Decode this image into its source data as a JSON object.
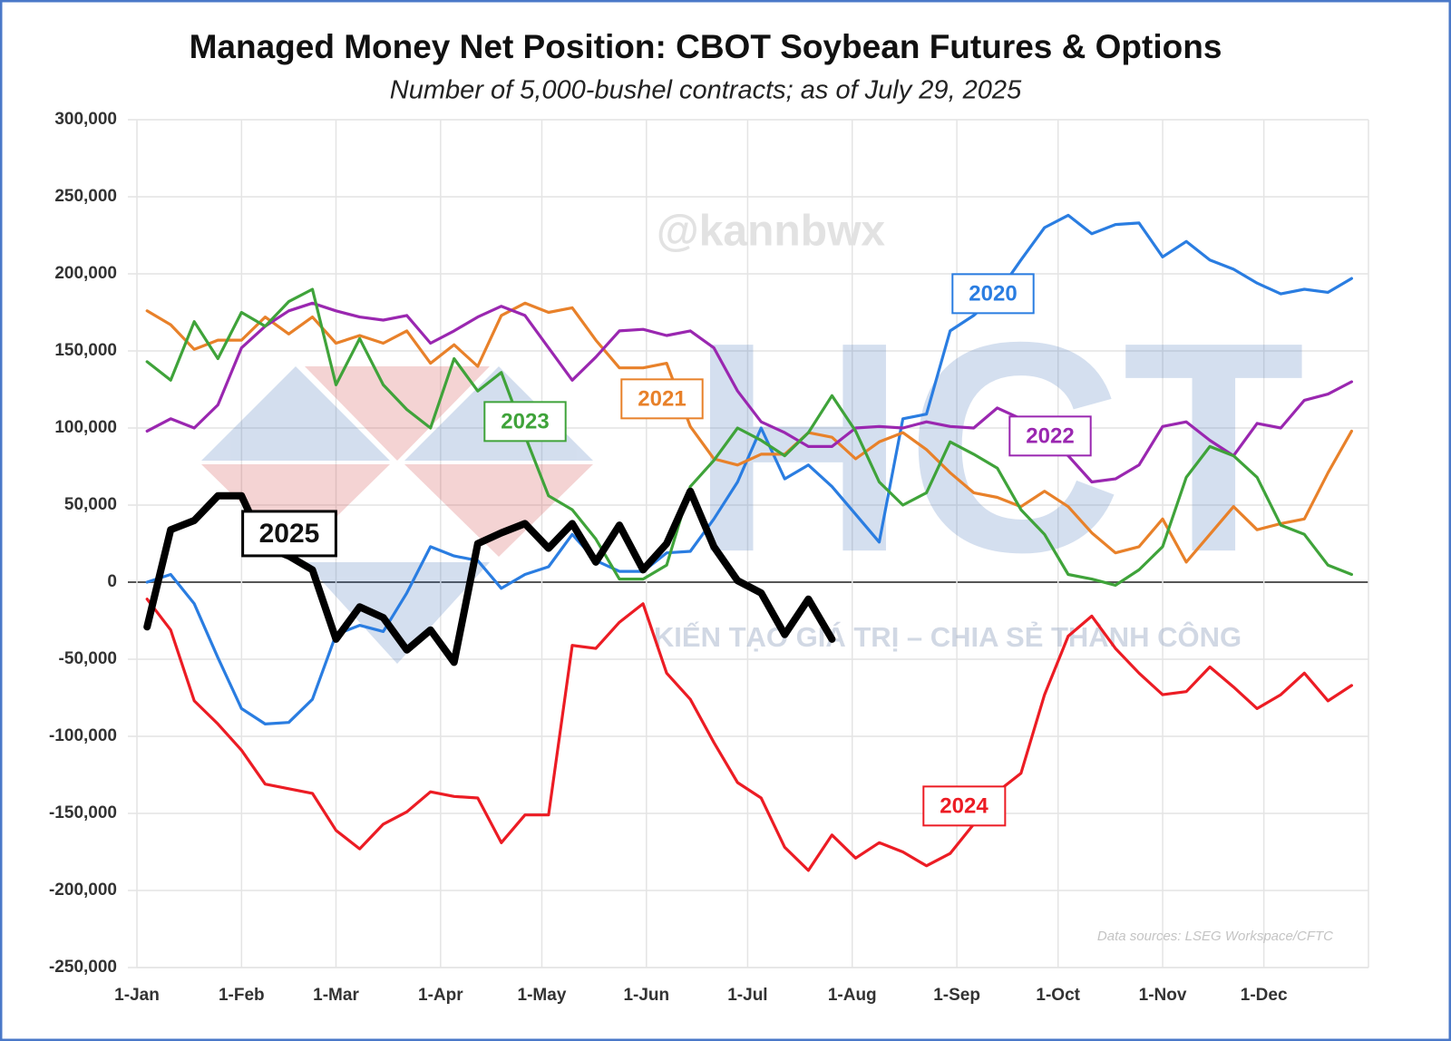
{
  "chart_data": {
    "type": "line",
    "title": "Managed Money Net Position: CBOT Soybean Futures & Options",
    "subtitle": "Number of 5,000-bushel contracts; as of July 29, 2025",
    "source": "Data sources: LSEG Workspace/CFTC",
    "watermark": "@kannbwx",
    "watermark_logo": "HCT",
    "watermark_slogan": "KIẾN TẠO GIÁ TRỊ – CHIA SẺ THÀNH CÔNG",
    "grid": true,
    "xlim": [
      0,
      365
    ],
    "xticks": [
      {
        "value": 0,
        "label": "1-Jan"
      },
      {
        "value": 31,
        "label": "1-Feb"
      },
      {
        "value": 59,
        "label": "1-Mar"
      },
      {
        "value": 90,
        "label": "1-Apr"
      },
      {
        "value": 120,
        "label": "1-May"
      },
      {
        "value": 151,
        "label": "1-Jun"
      },
      {
        "value": 181,
        "label": "1-Jul"
      },
      {
        "value": 212,
        "label": "1-Aug"
      },
      {
        "value": 243,
        "label": "1-Sep"
      },
      {
        "value": 273,
        "label": "1-Oct"
      },
      {
        "value": 304,
        "label": "1-Nov"
      },
      {
        "value": 334,
        "label": "1-Dec"
      }
    ],
    "ylim": [
      -250000,
      300000
    ],
    "yticks": [
      {
        "value": 300000,
        "label": "300,000"
      },
      {
        "value": 250000,
        "label": "250,000"
      },
      {
        "value": 200000,
        "label": "200,000"
      },
      {
        "value": 150000,
        "label": "150,000"
      },
      {
        "value": 100000,
        "label": "100,000"
      },
      {
        "value": 50000,
        "label": "50,000"
      },
      0,
      {
        "value": -50000,
        "label": "-50,000"
      },
      {
        "value": -100000,
        "label": "-100,000"
      },
      {
        "value": -150000,
        "label": "-150,000"
      },
      {
        "value": -200000,
        "label": "-200,000"
      },
      {
        "value": -250000,
        "label": "-250,000"
      }
    ],
    "x": [
      3,
      10,
      17,
      24,
      31,
      38,
      45,
      52,
      59,
      66,
      73,
      80,
      87,
      94,
      101,
      108,
      115,
      122,
      129,
      136,
      143,
      150,
      157,
      164,
      171,
      178,
      185,
      192,
      199,
      206,
      213,
      220,
      227,
      234,
      241,
      248,
      255,
      262,
      269,
      276,
      283,
      290,
      297,
      304,
      311,
      318,
      325,
      332,
      339,
      346,
      353,
      360
    ],
    "series": [
      {
        "name": "2020",
        "color": "#2a7de1",
        "values": [
          0,
          5000,
          -14000,
          -49000,
          -82000,
          -92000,
          -91000,
          -76000,
          -34000,
          -28000,
          -32000,
          -7000,
          23000,
          17000,
          14000,
          -4000,
          5000,
          10000,
          31000,
          14000,
          7000,
          7000,
          19000,
          20000,
          41000,
          65000,
          100000,
          67000,
          76000,
          62000,
          44000,
          26000,
          106000,
          109000,
          163000,
          173000,
          187000,
          209000,
          230000,
          238000,
          226000,
          232000,
          233000,
          211000,
          221000,
          209000,
          203000,
          194000,
          187000,
          190000,
          188000,
          197000
        ]
      },
      {
        "name": "2021",
        "color": "#e8812a",
        "values": [
          176000,
          167000,
          151000,
          157000,
          157000,
          172000,
          161000,
          172000,
          155000,
          160000,
          155000,
          163000,
          142000,
          154000,
          140000,
          173000,
          181000,
          175000,
          178000,
          157000,
          139000,
          139000,
          142000,
          101000,
          80000,
          76000,
          83000,
          83000,
          97000,
          94000,
          80000,
          91000,
          97000,
          86000,
          71000,
          58000,
          55000,
          49000,
          59000,
          49000,
          32000,
          19000,
          23000,
          41000,
          13000,
          31000,
          49000,
          34000,
          38000,
          41000,
          71000,
          98000
        ]
      },
      {
        "name": "2022",
        "color": "#9a27b0",
        "values": [
          98000,
          106000,
          100000,
          115000,
          152000,
          166000,
          176000,
          181000,
          176000,
          172000,
          170000,
          173000,
          155000,
          163000,
          172000,
          179000,
          173000,
          152000,
          131000,
          146000,
          163000,
          164000,
          160000,
          163000,
          152000,
          124000,
          104000,
          97000,
          88000,
          88000,
          100000,
          101000,
          100000,
          104000,
          101000,
          100000,
          113000,
          106000,
          95000,
          82000,
          65000,
          67000,
          76000,
          101000,
          104000,
          92000,
          82000,
          103000,
          100000,
          118000,
          122000,
          130000
        ]
      },
      {
        "name": "2023",
        "color": "#3fa33a",
        "values": [
          143000,
          131000,
          169000,
          145000,
          175000,
          166000,
          182000,
          190000,
          128000,
          158000,
          128000,
          112000,
          100000,
          145000,
          124000,
          136000,
          95000,
          56000,
          47000,
          28000,
          2000,
          2000,
          11000,
          62000,
          79000,
          100000,
          92000,
          82000,
          97000,
          121000,
          98000,
          65000,
          50000,
          58000,
          91000,
          83000,
          74000,
          47000,
          31000,
          5000,
          2000,
          -2000,
          8000,
          23000,
          68000,
          88000,
          82000,
          68000,
          37000,
          31000,
          11000,
          5000
        ]
      },
      {
        "name": "2024",
        "color": "#ec1c24",
        "values": [
          -11000,
          -31000,
          -77000,
          -92000,
          -109000,
          -131000,
          -134000,
          -137000,
          -161000,
          -173000,
          -157000,
          -149000,
          -136000,
          -139000,
          -140000,
          -169000,
          -151000,
          -151000,
          -41000,
          -43000,
          -26000,
          -14000,
          -59000,
          -76000,
          -104000,
          -130000,
          -140000,
          -172000,
          -187000,
          -164000,
          -179000,
          -169000,
          -175000,
          -184000,
          -176000,
          -157000,
          -136000,
          -124000,
          -73000,
          -35000,
          -22000,
          -43000,
          -59000,
          -73000,
          -71000,
          -55000,
          -68000,
          -82000,
          -73000,
          -59000,
          -77000,
          -67000
        ]
      },
      {
        "name": "2025",
        "color": "#000000",
        "values": [
          -29000,
          34000,
          40000,
          56000,
          56000,
          23000,
          17000,
          8000,
          -37000,
          -16000,
          -23000,
          -44000,
          -31000,
          -52000,
          25000,
          32000,
          38000,
          22000,
          38000,
          13000,
          37000,
          8000,
          25000,
          59000,
          23000,
          1000,
          -7000,
          -34000,
          -11000,
          -37000,
          null,
          null,
          null,
          null,
          null,
          null,
          null,
          null,
          null,
          null,
          null,
          null,
          null,
          null,
          null,
          null,
          null,
          null,
          null,
          null,
          null,
          null
        ]
      }
    ]
  }
}
